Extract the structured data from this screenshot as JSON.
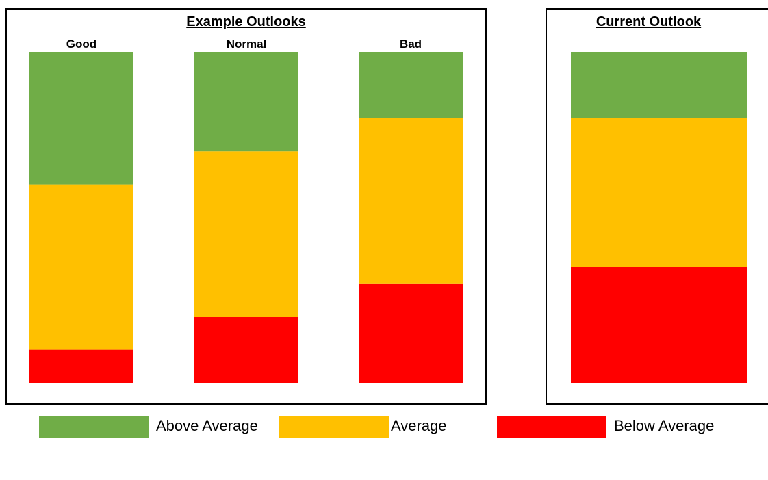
{
  "colors": {
    "above": "#70AD47",
    "average": "#FFC000",
    "below": "#FF0000"
  },
  "chart_data": [
    {
      "type": "bar",
      "stacked": true,
      "title": "Example Outlooks",
      "categories": [
        "Good",
        "Normal",
        "Bad"
      ],
      "series": [
        {
          "name": "Below Average",
          "color": "#FF0000",
          "values": [
            10,
            20,
            30
          ]
        },
        {
          "name": "Average",
          "color": "#FFC000",
          "values": [
            50,
            50,
            50
          ]
        },
        {
          "name": "Above Average",
          "color": "#70AD47",
          "values": [
            40,
            30,
            20
          ]
        }
      ],
      "ylim": [
        0,
        100
      ],
      "grid": false,
      "legend": "bottom"
    },
    {
      "type": "bar",
      "stacked": true,
      "title": "Current Outlook",
      "categories": [
        ""
      ],
      "series": [
        {
          "name": "Below Average",
          "color": "#FF0000",
          "values": [
            35
          ]
        },
        {
          "name": "Average",
          "color": "#FFC000",
          "values": [
            45
          ]
        },
        {
          "name": "Above Average",
          "color": "#70AD47",
          "values": [
            20
          ]
        }
      ],
      "ylim": [
        0,
        100
      ],
      "grid": false,
      "legend": "bottom"
    }
  ],
  "legend": {
    "items": [
      {
        "label": "Above Average",
        "color": "#70AD47"
      },
      {
        "label": "Average",
        "color": "#FFC000"
      },
      {
        "label": "Below Average",
        "color": "#FF0000"
      }
    ]
  }
}
